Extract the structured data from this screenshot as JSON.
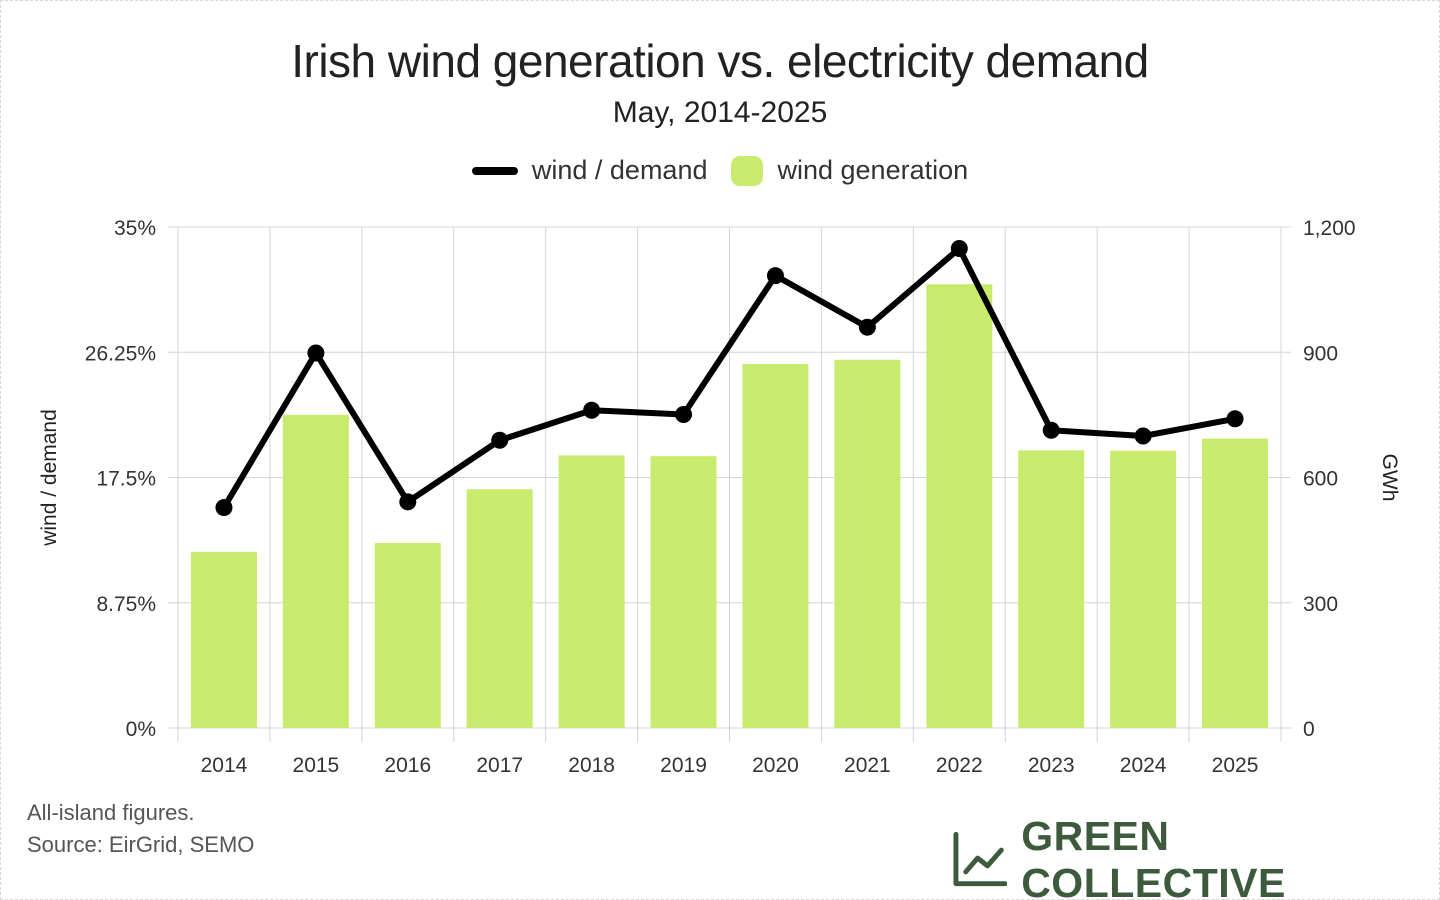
{
  "colors": {
    "bar": "#c8eb6e",
    "line": "#000000",
    "grid": "#d4d4d4",
    "brand": "#3d5a3d"
  },
  "chart_data": {
    "type": "bar",
    "title": "Irish wind generation vs. electricity demand",
    "subtitle": "May, 2014-2025",
    "categories": [
      "2014",
      "2015",
      "2016",
      "2017",
      "2018",
      "2019",
      "2020",
      "2021",
      "2022",
      "2023",
      "2024",
      "2025"
    ],
    "series": [
      {
        "name": "wind / demand",
        "type": "line",
        "axis": "left",
        "values": [
          15.4,
          26.2,
          15.8,
          20.1,
          22.2,
          21.9,
          31.6,
          28.0,
          33.5,
          20.8,
          20.4,
          21.6
        ]
      },
      {
        "name": "wind generation",
        "type": "bar",
        "axis": "right",
        "values": [
          422,
          750,
          443,
          572,
          653,
          651,
          872,
          882,
          1063,
          665,
          664,
          693
        ]
      }
    ],
    "y_left": {
      "label": "wind / demand",
      "range": [
        0,
        35
      ],
      "ticks": [
        0,
        8.75,
        17.5,
        26.25,
        35
      ],
      "tick_labels": [
        "0%",
        "8.75%",
        "17.5%",
        "26.25%",
        "35%"
      ]
    },
    "y_right": {
      "label": "GWh",
      "range": [
        0,
        1200
      ],
      "ticks": [
        0,
        300,
        600,
        900,
        1200
      ],
      "tick_labels": [
        "0",
        "300",
        "600",
        "900",
        "1,200"
      ]
    },
    "grid": true,
    "legend": "top-center"
  },
  "footnotes": {
    "line1": "All-island figures.",
    "line2": "Source: EirGrid, SEMO"
  },
  "brand": {
    "name": "GREEN COLLECTIVE",
    "icon": "line-chart-icon"
  }
}
